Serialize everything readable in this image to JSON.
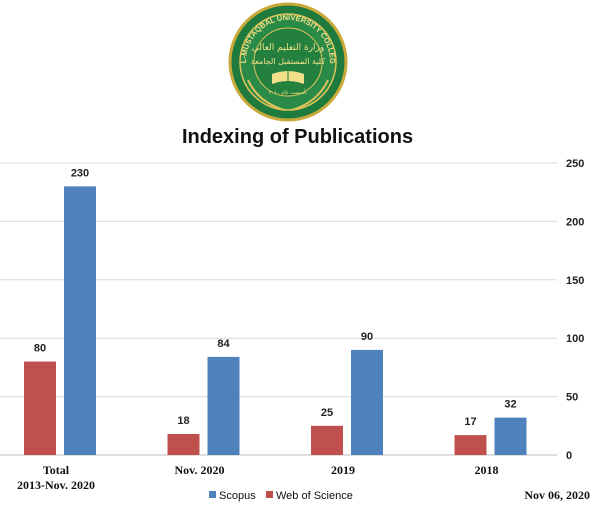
{
  "logo": {
    "text_arc": "AL-MUSTAQBAL UNIVERSITY COLLEGE",
    "arabic_top": "وزارة التعليم العالي",
    "arabic_main": "كلية المستقبل الجامعة",
    "arabic_small": "تأسست عام ٢٠١٠"
  },
  "footer_date": "Nov 06, 2020",
  "colors": {
    "web_of_science": "#c0504d",
    "scopus": "#4f81bd",
    "grid": "#d9d9d9"
  },
  "chart_data": {
    "type": "bar",
    "title": "Indexing of Publications",
    "categories": [
      [
        "Total",
        "2013-Nov. 2020"
      ],
      [
        "Nov. 2020"
      ],
      [
        "2019"
      ],
      [
        "2018"
      ]
    ],
    "series": [
      {
        "name": "Web of Science",
        "values": [
          80,
          18,
          25,
          17
        ]
      },
      {
        "name": "Scopus",
        "values": [
          230,
          84,
          90,
          32
        ]
      }
    ],
    "ylim": [
      0,
      250
    ],
    "yticks": [
      0,
      50,
      100,
      150,
      200,
      250
    ],
    "y_axis_side": "right",
    "grid": true,
    "legend_position": "bottom",
    "legend_order": [
      "Scopus",
      "Web of Science"
    ]
  }
}
